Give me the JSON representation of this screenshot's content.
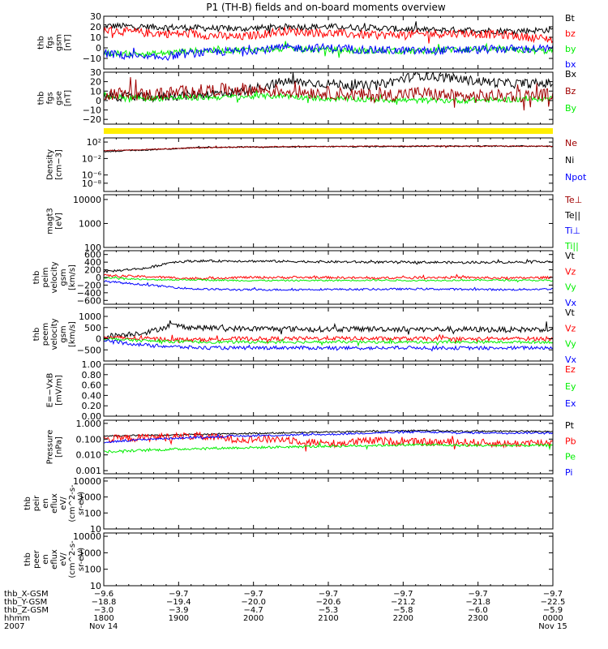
{
  "title": "P1 (TH-B) fields and on-board moments overview",
  "colors": {
    "black": "#000000",
    "red": "#ff0000",
    "green": "#00ee00",
    "blue": "#0000ff",
    "darkred": "#a00000",
    "yellow": "#ffee00"
  },
  "chart_data": [
    {
      "type": "line",
      "ylabel": [
        "thb",
        "fgs",
        "gsm",
        "[nT]"
      ],
      "ylim": [
        -20,
        30
      ],
      "yticks": [
        {
          "v": 30,
          "t": "30"
        },
        {
          "v": 20,
          "t": "20"
        },
        {
          "v": 10,
          "t": "10"
        },
        {
          "v": 0,
          "t": "0"
        },
        {
          "v": -10,
          "t": "−10"
        }
      ],
      "legend": [
        {
          "t": "Bt",
          "c": "#000000"
        },
        {
          "t": "bz",
          "c": "#ff0000"
        },
        {
          "t": "by",
          "c": "#00ee00"
        },
        {
          "t": "bx",
          "c": "#0000ff"
        }
      ],
      "series": [
        {
          "name": "Bt",
          "color": "#000000",
          "x": [
            0,
            0.1,
            0.2,
            0.3,
            0.4,
            0.5,
            0.6,
            0.7,
            0.8,
            0.9,
            1
          ],
          "y": [
            21,
            20,
            19,
            18,
            20,
            20,
            19,
            17,
            17,
            16,
            17
          ],
          "noise": 3
        },
        {
          "name": "bz",
          "color": "#ff0000",
          "x": [
            0,
            0.1,
            0.2,
            0.3,
            0.4,
            0.5,
            0.6,
            0.7,
            0.8,
            0.9,
            1
          ],
          "y": [
            17,
            14,
            13,
            10,
            16,
            14,
            12,
            13,
            14,
            12,
            8
          ],
          "noise": 4
        },
        {
          "name": "by",
          "color": "#00ee00",
          "x": [
            0,
            0.1,
            0.2,
            0.3,
            0.4,
            0.5,
            0.6,
            0.7,
            0.8,
            0.9,
            1
          ],
          "y": [
            -5,
            -6,
            -3,
            -2,
            -1,
            -2,
            -3,
            -3,
            -1,
            -2,
            -3
          ],
          "noise": 3
        },
        {
          "name": "bx",
          "color": "#0000ff",
          "x": [
            0,
            0.1,
            0.2,
            0.3,
            0.4,
            0.5,
            0.6,
            0.7,
            0.8,
            0.9,
            1
          ],
          "y": [
            -5,
            -10,
            -5,
            -3,
            0,
            0,
            -2,
            -3,
            -2,
            -1,
            -1
          ],
          "noise": 4
        }
      ]
    },
    {
      "type": "line",
      "ylabel": [
        "thb",
        "fgs",
        "gse",
        "[nT]"
      ],
      "ylim": [
        -25,
        30
      ],
      "yticks": [
        {
          "v": 30,
          "t": "30"
        },
        {
          "v": 20,
          "t": "20"
        },
        {
          "v": 10,
          "t": "10"
        },
        {
          "v": 0,
          "t": "0"
        },
        {
          "v": -10,
          "t": "−10"
        },
        {
          "v": -20,
          "t": "−20"
        }
      ],
      "legend": [
        {
          "t": "Bx",
          "c": "#000000"
        },
        {
          "t": "Bz",
          "c": "#a00000"
        },
        {
          "t": "By",
          "c": "#00ee00"
        }
      ],
      "series": [
        {
          "name": "Bx",
          "color": "#000000",
          "x": [
            0,
            0.1,
            0.2,
            0.3,
            0.4,
            0.5,
            0.6,
            0.7,
            0.8,
            0.9,
            1
          ],
          "y": [
            5,
            3,
            6,
            9,
            20,
            18,
            15,
            27,
            22,
            18,
            18
          ],
          "noise": 5
        },
        {
          "name": "By",
          "color": "#00ee00",
          "x": [
            0,
            0.1,
            0.2,
            0.3,
            0.4,
            0.5,
            0.6,
            0.7,
            0.8,
            0.9,
            1
          ],
          "y": [
            5,
            2,
            3,
            4,
            5,
            2,
            1,
            0,
            0,
            1,
            2
          ],
          "noise": 3
        },
        {
          "name": "Bz",
          "color": "#a00000",
          "x": [
            0,
            0.1,
            0.2,
            0.3,
            0.4,
            0.5,
            0.6,
            0.7,
            0.8,
            0.9,
            1
          ],
          "y": [
            8,
            6,
            10,
            12,
            10,
            8,
            5,
            8,
            4,
            5,
            6
          ],
          "noise": 7
        }
      ]
    },
    {
      "type": "line",
      "ylabel": [
        "Density",
        "[cm−3]"
      ],
      "scale": "log",
      "ylim": [
        -10,
        3
      ],
      "yticks": [
        {
          "v": 2,
          "t": "10²"
        },
        {
          "v": -2,
          "t": "10⁻²"
        },
        {
          "v": -6,
          "t": "10⁻⁶"
        },
        {
          "v": -8,
          "t": "10⁻⁸"
        }
      ],
      "legend": [
        {
          "t": "Ne",
          "c": "#a00000"
        },
        {
          "t": "Ni",
          "c": "#000000"
        },
        {
          "t": "Npot",
          "c": "#0000ff"
        }
      ],
      "series": [
        {
          "name": "Ni",
          "color": "#000000",
          "x": [
            0,
            0.1,
            0.2,
            0.3,
            0.4,
            0.5,
            0.6,
            0.7,
            0.8,
            0.9,
            1
          ],
          "y": [
            -0.3,
            0.1,
            0.6,
            0.8,
            0.8,
            0.9,
            0.9,
            1.0,
            1.0,
            1.0,
            1.0
          ],
          "noise": 0.15
        },
        {
          "name": "Ne",
          "color": "#a00000",
          "x": [
            0,
            0.1,
            0.2,
            0.3,
            0.4,
            0.5,
            0.6,
            0.7,
            0.8,
            0.9,
            1
          ],
          "y": [
            -0.1,
            0.2,
            0.6,
            0.8,
            0.9,
            0.9,
            1.0,
            1.0,
            1.0,
            1.0,
            1.0
          ],
          "noise": 0.12
        }
      ]
    },
    {
      "type": "line",
      "ylabel": [
        "magt3",
        "[eV]"
      ],
      "scale": "log",
      "ylim": [
        2,
        4.2
      ],
      "yticks": [
        {
          "v": 4,
          "t": "10000"
        },
        {
          "v": 3,
          "t": "1000"
        },
        {
          "v": 2,
          "t": "100"
        }
      ],
      "legend": [
        {
          "t": "Te⊥",
          "c": "#a00000"
        },
        {
          "t": "Te||",
          "c": "#000000"
        },
        {
          "t": "Ti⊥",
          "c": "#0000ff"
        },
        {
          "t": "Ti||",
          "c": "#00ee00"
        }
      ],
      "series": []
    },
    {
      "type": "line",
      "ylabel": [
        "thb",
        "peim",
        "velocity",
        "gsm",
        "[km/s]"
      ],
      "ylim": [
        -700,
        700
      ],
      "yticks": [
        {
          "v": 600,
          "t": "600"
        },
        {
          "v": 400,
          "t": "400"
        },
        {
          "v": 200,
          "t": "200"
        },
        {
          "v": 0,
          "t": "0"
        },
        {
          "v": -200,
          "t": "−200"
        },
        {
          "v": -400,
          "t": "−400"
        },
        {
          "v": -600,
          "t": "−600"
        }
      ],
      "legend": [
        {
          "t": "Vt",
          "c": "#000000"
        },
        {
          "t": "Vz",
          "c": "#ff0000"
        },
        {
          "t": "Vy",
          "c": "#00ee00"
        },
        {
          "t": "Vx",
          "c": "#0000ff"
        }
      ],
      "series": [
        {
          "name": "Vt",
          "color": "#000000",
          "x": [
            0,
            0.1,
            0.15,
            0.2,
            0.3,
            0.4,
            0.5,
            0.6,
            0.7,
            0.8,
            0.9,
            1
          ],
          "y": [
            150,
            250,
            400,
            430,
            430,
            420,
            410,
            400,
            400,
            390,
            400,
            420
          ],
          "noise": 30
        },
        {
          "name": "Vz",
          "color": "#ff0000",
          "x": [
            0,
            0.1,
            0.2,
            0.3,
            0.4,
            0.5,
            0.6,
            0.7,
            0.8,
            0.9,
            1
          ],
          "y": [
            50,
            20,
            -30,
            0,
            0,
            0,
            -20,
            0,
            0,
            -20,
            0
          ],
          "noise": 30
        },
        {
          "name": "Vy",
          "color": "#00ee00",
          "x": [
            0,
            0.1,
            0.2,
            0.3,
            0.4,
            0.5,
            0.6,
            0.7,
            0.8,
            0.9,
            1
          ],
          "y": [
            0,
            -60,
            -60,
            -80,
            -80,
            -80,
            -70,
            -80,
            -70,
            -70,
            -80
          ],
          "noise": 20
        },
        {
          "name": "Vx",
          "color": "#0000ff",
          "x": [
            0,
            0.1,
            0.2,
            0.3,
            0.4,
            0.5,
            0.6,
            0.7,
            0.8,
            0.9,
            1
          ],
          "y": [
            -100,
            -200,
            -300,
            -320,
            -320,
            -310,
            -310,
            -300,
            -310,
            -320,
            -300
          ],
          "noise": 25
        }
      ]
    },
    {
      "type": "line",
      "ylabel": [
        "thb",
        "peem",
        "velocity",
        "gsm",
        "[km/s]"
      ],
      "ylim": [
        -1000,
        1400
      ],
      "yticks": [
        {
          "v": 1000,
          "t": "1000"
        },
        {
          "v": 500,
          "t": "500"
        },
        {
          "v": 0,
          "t": "0"
        },
        {
          "v": -500,
          "t": "−500"
        }
      ],
      "legend": [
        {
          "t": "Vt",
          "c": "#000000"
        },
        {
          "t": "Vz",
          "c": "#ff0000"
        },
        {
          "t": "Vy",
          "c": "#00ee00"
        },
        {
          "t": "Vx",
          "c": "#0000ff"
        }
      ],
      "series": [
        {
          "name": "Vt",
          "color": "#000000",
          "x": [
            0,
            0.1,
            0.15,
            0.2,
            0.3,
            0.4,
            0.5,
            0.6,
            0.7,
            0.8,
            0.9,
            1
          ],
          "y": [
            100,
            300,
            600,
            500,
            450,
            450,
            420,
            440,
            420,
            420,
            400,
            430
          ],
          "noise": 120
        },
        {
          "name": "Vz",
          "color": "#ff0000",
          "x": [
            0,
            0.1,
            0.2,
            0.3,
            0.4,
            0.5,
            0.6,
            0.7,
            0.8,
            0.9,
            1
          ],
          "y": [
            50,
            0,
            -50,
            0,
            0,
            20,
            0,
            0,
            -20,
            0,
            0
          ],
          "noise": 90
        },
        {
          "name": "Vy",
          "color": "#00ee00",
          "x": [
            0,
            0.1,
            0.2,
            0.3,
            0.4,
            0.5,
            0.6,
            0.7,
            0.8,
            0.9,
            1
          ],
          "y": [
            0,
            -100,
            -150,
            -150,
            -150,
            -150,
            -150,
            -150,
            -150,
            -150,
            -150
          ],
          "noise": 60
        },
        {
          "name": "Vx",
          "color": "#0000ff",
          "x": [
            0,
            0.1,
            0.2,
            0.3,
            0.4,
            0.5,
            0.6,
            0.7,
            0.8,
            0.9,
            1
          ],
          "y": [
            -100,
            -300,
            -400,
            -420,
            -400,
            -420,
            -420,
            -400,
            -420,
            -420,
            -400
          ],
          "noise": 80
        }
      ]
    },
    {
      "type": "line",
      "ylabel": [
        "E=−VxB",
        "[mV/m]"
      ],
      "ylim": [
        0,
        1
      ],
      "yticks": [
        {
          "v": 1,
          "t": "1.00"
        },
        {
          "v": 0.8,
          "t": "0.80"
        },
        {
          "v": 0.6,
          "t": "0.60"
        },
        {
          "v": 0.4,
          "t": "0.40"
        },
        {
          "v": 0.2,
          "t": "0.20"
        },
        {
          "v": 0,
          "t": "0.00"
        }
      ],
      "legend": [
        {
          "t": "Ez",
          "c": "#ff0000"
        },
        {
          "t": "Ey",
          "c": "#00ee00"
        },
        {
          "t": "Ex",
          "c": "#0000ff"
        }
      ],
      "series": []
    },
    {
      "type": "line",
      "ylabel": [
        "Pressure",
        "[nPa]"
      ],
      "scale": "log",
      "ylim": [
        -3.2,
        0.2
      ],
      "yticks": [
        {
          "v": 0,
          "t": "1.000"
        },
        {
          "v": -1,
          "t": "0.100"
        },
        {
          "v": -2,
          "t": "0.010"
        },
        {
          "v": -3,
          "t": "0.001"
        }
      ],
      "legend": [
        {
          "t": "Pt",
          "c": "#000000"
        },
        {
          "t": "Pb",
          "c": "#ff0000"
        },
        {
          "t": "Pe",
          "c": "#00ee00"
        },
        {
          "t": "Pi",
          "c": "#0000ff"
        }
      ],
      "series": [
        {
          "name": "Pt",
          "color": "#000000",
          "x": [
            0,
            0.1,
            0.2,
            0.3,
            0.4,
            0.5,
            0.6,
            0.7,
            0.8,
            0.9,
            1
          ],
          "y": [
            -0.8,
            -0.75,
            -0.7,
            -0.65,
            -0.6,
            -0.55,
            -0.5,
            -0.45,
            -0.5,
            -0.5,
            -0.5
          ],
          "noise": 0.05
        },
        {
          "name": "Pb",
          "color": "#ff0000",
          "x": [
            0,
            0.1,
            0.2,
            0.3,
            0.4,
            0.5,
            0.6,
            0.7,
            0.8,
            0.9,
            1
          ],
          "y": [
            -1.0,
            -0.9,
            -0.8,
            -1.0,
            -1.0,
            -1.3,
            -1.1,
            -1.2,
            -1.2,
            -1.3,
            -1.2
          ],
          "noise": 0.25
        },
        {
          "name": "Pi",
          "color": "#0000ff",
          "x": [
            0,
            0.1,
            0.2,
            0.3,
            0.4,
            0.5,
            0.6,
            0.7,
            0.8,
            0.9,
            1
          ],
          "y": [
            -1.2,
            -1.0,
            -0.9,
            -0.8,
            -0.75,
            -0.7,
            -0.6,
            -0.55,
            -0.6,
            -0.6,
            -0.6
          ],
          "noise": 0.06
        },
        {
          "name": "Pe",
          "color": "#00ee00",
          "x": [
            0,
            0.1,
            0.2,
            0.3,
            0.4,
            0.5,
            0.6,
            0.7,
            0.8,
            0.9,
            1
          ],
          "y": [
            -1.8,
            -1.7,
            -1.6,
            -1.55,
            -1.5,
            -1.45,
            -1.4,
            -1.35,
            -1.4,
            -1.4,
            -1.4
          ],
          "noise": 0.08
        }
      ]
    },
    {
      "type": "line",
      "ylabel": [
        "thb",
        "peir",
        "en",
        "eflux",
        "eV/",
        "(cm^2-s-",
        "sr-eV)"
      ],
      "scale": "log",
      "ylim": [
        1,
        4.2
      ],
      "yticks": [
        {
          "v": 4,
          "t": "10000"
        },
        {
          "v": 3,
          "t": "1000"
        },
        {
          "v": 2,
          "t": "100"
        },
        {
          "v": 1,
          "t": "10"
        }
      ],
      "legend": [],
      "series": []
    },
    {
      "type": "line",
      "ylabel": [
        "thb",
        "peer",
        "en",
        "eflux",
        "eV/",
        "(cm^2-s-",
        "sr-eV)"
      ],
      "scale": "log",
      "ylim": [
        1,
        4.2
      ],
      "yticks": [
        {
          "v": 4,
          "t": "10000"
        },
        {
          "v": 3,
          "t": "1000"
        },
        {
          "v": 2,
          "t": "100"
        },
        {
          "v": 1,
          "t": "10"
        }
      ],
      "legend": [],
      "series": []
    }
  ],
  "xaxis": {
    "row_labels": [
      "thb_X-GSM",
      "thb_Y-GSM",
      "thb_Z-GSM",
      "hhmm",
      "2007"
    ],
    "ticks": [
      {
        "rows": [
          "−9.6",
          "−18.8",
          "−3.0",
          "1800",
          "Nov 14"
        ]
      },
      {
        "rows": [
          "−9.7",
          "−19.4",
          "−3.9",
          "1900",
          ""
        ]
      },
      {
        "rows": [
          "−9.7",
          "−20.0",
          "−4.7",
          "2000",
          ""
        ]
      },
      {
        "rows": [
          "−9.7",
          "−20.6",
          "−5.3",
          "2100",
          ""
        ]
      },
      {
        "rows": [
          "−9.7",
          "−21.2",
          "−5.8",
          "2200",
          ""
        ]
      },
      {
        "rows": [
          "−9.7",
          "−21.8",
          "−6.0",
          "2300",
          ""
        ]
      },
      {
        "rows": [
          "−9.7",
          "−22.5",
          "−5.9",
          "0000",
          "Nov 15"
        ]
      }
    ]
  }
}
